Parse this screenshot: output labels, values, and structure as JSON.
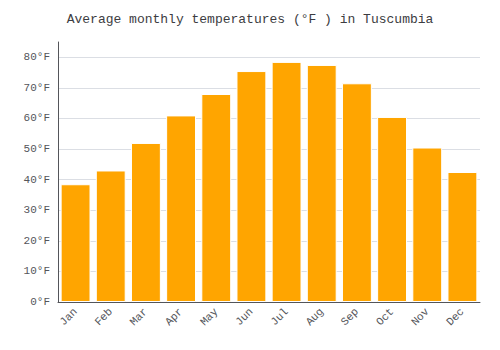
{
  "chart_data": {
    "type": "bar",
    "title": "Average monthly temperatures (°F ) in Tuscumbia",
    "categories": [
      "Jan",
      "Feb",
      "Mar",
      "Apr",
      "May",
      "Jun",
      "Jul",
      "Aug",
      "Sep",
      "Oct",
      "Nov",
      "Dec"
    ],
    "values": [
      38.5,
      43.0,
      52.0,
      61.0,
      68.0,
      75.5,
      78.5,
      77.5,
      71.5,
      60.5,
      50.5,
      42.5
    ],
    "color": "#FFA500",
    "ylim": [
      0,
      85
    ],
    "yticks": [
      {
        "value": 0,
        "label": "0°F"
      },
      {
        "value": 10,
        "label": "10°F"
      },
      {
        "value": 20,
        "label": "20°F"
      },
      {
        "value": 30,
        "label": "30°F"
      },
      {
        "value": 40,
        "label": "40°F"
      },
      {
        "value": 50,
        "label": "50°F"
      },
      {
        "value": 60,
        "label": "60°F"
      },
      {
        "value": 70,
        "label": "70°F"
      },
      {
        "value": 80,
        "label": "80°F"
      }
    ],
    "grid": true
  }
}
